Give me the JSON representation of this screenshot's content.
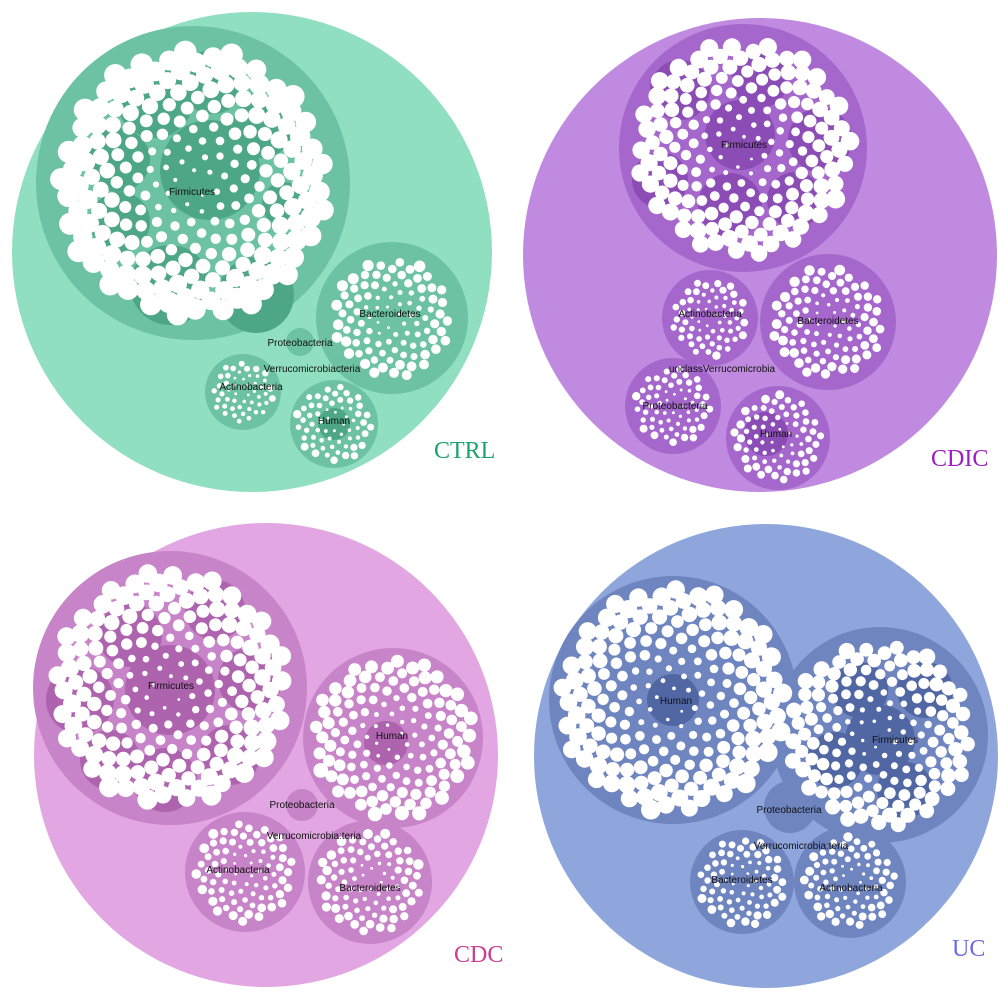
{
  "panels": [
    {
      "id": "ctrl",
      "label": "CTRL",
      "label_color": "#1aa36a",
      "outer_color": "#90dfc0",
      "group_color": "#6cc2a2",
      "cluster_color": "#4da786",
      "groups": [
        "Firmicutes",
        "Bacteroidetes",
        "Proteobacteria",
        "Verrucomicrobiacteria",
        "Actinobacteria",
        "Human"
      ]
    },
    {
      "id": "cdic",
      "label": "CDIC",
      "label_color": "#9a1ec4",
      "outer_color": "#c08ae0",
      "group_color": "#a567cc",
      "cluster_color": "#8b4cb5",
      "groups": [
        "Firmicutes",
        "Actinobacteria",
        "Bacteroidetes",
        "unclassVerrucomicrobia",
        "Proteobacteria",
        "Human"
      ]
    },
    {
      "id": "cdc",
      "label": "CDC",
      "label_color": "#cc3e8e",
      "outer_color": "#e2a7e2",
      "group_color": "#c784c8",
      "cluster_color": "#ad63ad",
      "groups": [
        "Firmicutes",
        "Human",
        "Proteobacteria",
        "Verrucomicrobiaːteria",
        "Actinobacteria",
        "Bacteroidetes"
      ]
    },
    {
      "id": "uc",
      "label": "UC",
      "label_color": "#6b6be6",
      "outer_color": "#8ea6dc",
      "group_color": "#6f85c0",
      "cluster_color": "#5067a4",
      "groups": [
        "Human",
        "Firmicutes",
        "Proteobacteria",
        "Verrucomicrobiaːteria",
        "Bacteroidetes",
        "Actinobacteria"
      ]
    }
  ]
}
